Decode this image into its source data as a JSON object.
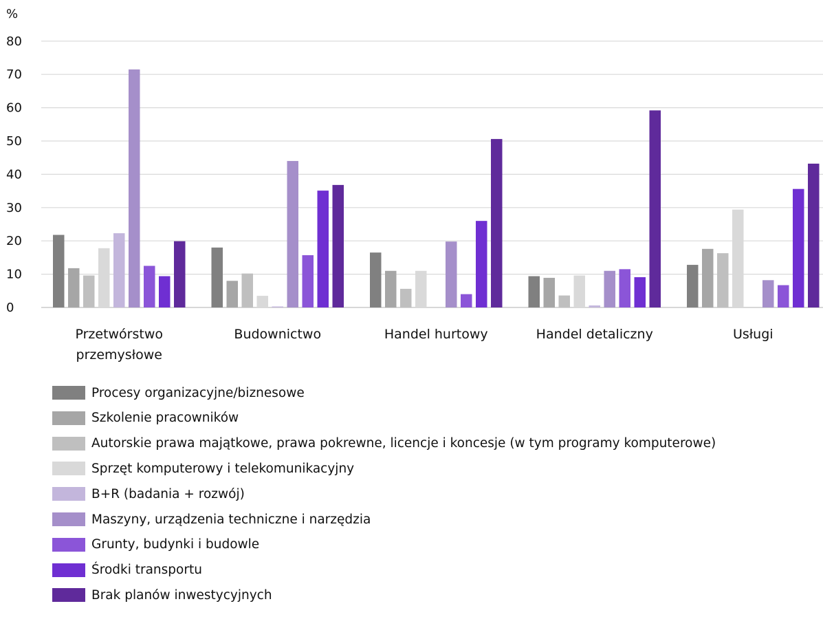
{
  "chart_data": {
    "type": "bar",
    "ylabel": "%",
    "ylim": [
      0,
      80
    ],
    "yticks": [
      0,
      10,
      20,
      30,
      40,
      50,
      60,
      70,
      80
    ],
    "categories": [
      "Przetwórstwo przemysłowe",
      "Budownictwo",
      "Handel hurtowy",
      "Handel detaliczny",
      "Usługi"
    ],
    "category_lines": [
      [
        "Przetwórstwo",
        "przemysłowe"
      ],
      [
        "Budownictwo"
      ],
      [
        "Handel hurtowy"
      ],
      [
        "Handel detaliczny"
      ],
      [
        "Usługi"
      ]
    ],
    "grid": true,
    "legend_position": "bottom",
    "series": [
      {
        "name": "Procesy organizacyjne/biznesowe",
        "color": "#808080",
        "values": [
          21.8,
          18.0,
          16.5,
          9.4,
          12.8
        ]
      },
      {
        "name": "Szkolenie pracowników",
        "color": "#a6a6a6",
        "values": [
          11.8,
          8.0,
          11.0,
          8.9,
          17.6
        ]
      },
      {
        "name": "Autorskie prawa majątkowe, prawa pokrewne, licencje i koncesje (w tym programy komputerowe)",
        "color": "#bfbfbf",
        "values": [
          9.6,
          10.2,
          5.6,
          3.6,
          16.3
        ]
      },
      {
        "name": "Sprzęt komputerowy i telekomunikacyjny",
        "color": "#d9d9d9",
        "values": [
          17.8,
          3.5,
          11.0,
          9.6,
          29.4
        ]
      },
      {
        "name": "B+R (badania + rozwój)",
        "color": "#c3b6dc",
        "values": [
          22.3,
          0.3,
          0.0,
          0.6,
          0.0
        ]
      },
      {
        "name": "Maszyny, urządzenia techniczne i narzędzia",
        "color": "#a58fca",
        "values": [
          71.5,
          44.0,
          19.8,
          11.0,
          8.2
        ]
      },
      {
        "name": "Grunty, budynki i budowle",
        "color": "#8b55d8",
        "values": [
          12.5,
          15.7,
          4.0,
          11.5,
          6.7
        ]
      },
      {
        "name": "Środki transportu",
        "color": "#6f2fd2",
        "values": [
          9.4,
          35.1,
          26.0,
          9.1,
          35.6
        ]
      },
      {
        "name": "Brak planów inwestycyjnych",
        "color": "#5f2a9b",
        "values": [
          19.9,
          36.8,
          50.6,
          59.2,
          43.2
        ]
      }
    ]
  }
}
